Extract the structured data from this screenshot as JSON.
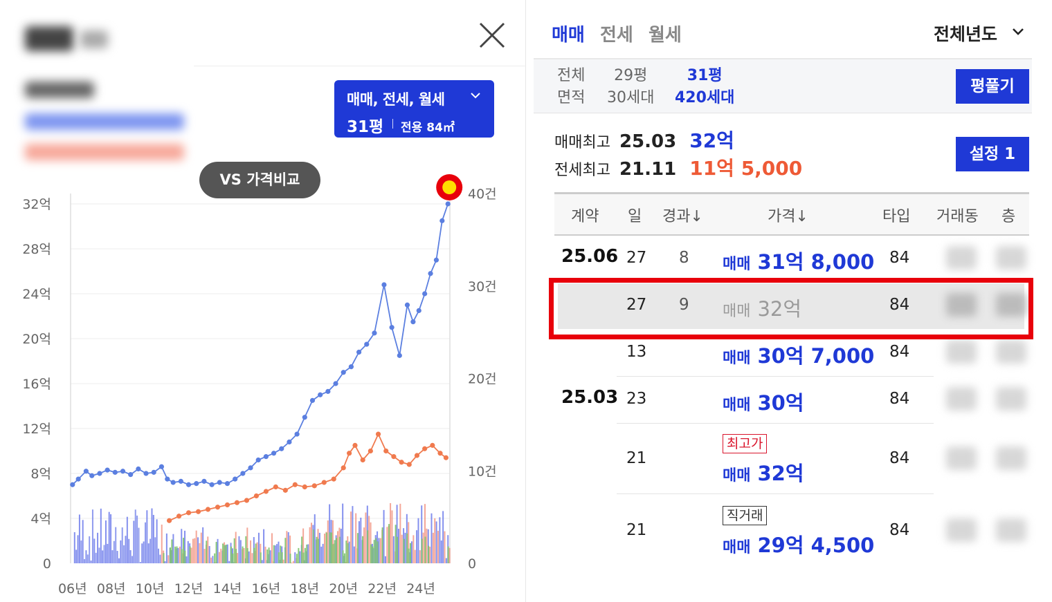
{
  "left_panel": {
    "filter": {
      "types_label": "매매, 전세, 월세",
      "pyeong": "31평",
      "area": "전용 84㎡"
    },
    "compare_button": "VS 가격비교",
    "icons": {
      "close": "close-icon",
      "dropdown": "chevron-down-icon"
    }
  },
  "chart_data": {
    "type": "line",
    "x_tick_labels": [
      "06년",
      "08년",
      "10년",
      "12년",
      "14년",
      "16년",
      "18년",
      "20년",
      "22년",
      "24년"
    ],
    "y_left_tick_labels": [
      "0",
      "4억",
      "8억",
      "12억",
      "16억",
      "20억",
      "24억",
      "28억",
      "32억"
    ],
    "y_right_tick_labels": [
      "0",
      "10건",
      "20건",
      "30건",
      "40건"
    ],
    "ylim_price_eok": [
      0,
      32
    ],
    "ylim_volume_cases": [
      0,
      40
    ],
    "series": [
      {
        "name": "매매",
        "color": "#5b7fe0",
        "x": [
          2006.0,
          2006.3,
          2006.7,
          2007.0,
          2007.4,
          2007.8,
          2008.2,
          2008.6,
          2009.0,
          2009.4,
          2009.8,
          2010.2,
          2010.6,
          2010.9,
          2011.2,
          2011.6,
          2012.0,
          2012.4,
          2012.8,
          2013.2,
          2013.6,
          2014.0,
          2014.4,
          2014.8,
          2015.2,
          2015.6,
          2016.0,
          2016.4,
          2016.8,
          2017.2,
          2017.6,
          2018.0,
          2018.4,
          2018.8,
          2019.2,
          2019.6,
          2020.0,
          2020.4,
          2020.8,
          2021.2,
          2021.6,
          2022.1,
          2022.5,
          2022.9,
          2023.3,
          2023.6,
          2023.9,
          2024.2,
          2024.5,
          2024.8,
          2025.1,
          2025.4
        ],
        "values": [
          7.0,
          7.5,
          8.2,
          7.8,
          8.0,
          8.3,
          8.1,
          8.2,
          7.9,
          8.4,
          8.0,
          8.1,
          8.6,
          7.5,
          7.2,
          7.3,
          7.0,
          7.1,
          7.3,
          7.0,
          7.2,
          7.1,
          7.5,
          8.0,
          8.5,
          9.2,
          9.5,
          9.8,
          10.2,
          10.8,
          11.5,
          13.0,
          14.5,
          15.0,
          15.3,
          16.0,
          17.0,
          17.5,
          18.8,
          19.5,
          20.5,
          24.8,
          21.0,
          18.5,
          23.0,
          21.5,
          22.5,
          24.0,
          25.8,
          27.0,
          30.5,
          32.0
        ]
      },
      {
        "name": "전세",
        "color": "#f07a4e",
        "x": [
          2011.0,
          2011.5,
          2012.0,
          2012.5,
          2013.0,
          2013.5,
          2014.0,
          2014.5,
          2015.0,
          2015.5,
          2016.0,
          2016.5,
          2017.0,
          2017.5,
          2018.0,
          2018.5,
          2019.0,
          2019.5,
          2020.0,
          2020.3,
          2020.6,
          2021.0,
          2021.4,
          2021.8,
          2022.2,
          2022.6,
          2023.0,
          2023.4,
          2023.8,
          2024.2,
          2024.6,
          2025.0,
          2025.3
        ],
        "values": [
          3.8,
          4.2,
          4.5,
          4.6,
          4.8,
          5.0,
          5.2,
          5.4,
          5.6,
          6.0,
          6.4,
          6.8,
          6.5,
          7.0,
          6.8,
          6.9,
          7.2,
          7.5,
          8.5,
          9.8,
          10.5,
          9.2,
          10.0,
          11.5,
          10.0,
          9.5,
          9.0,
          8.8,
          9.6,
          10.2,
          10.5,
          9.8,
          9.4
        ]
      }
    ]
  },
  "right_panel": {
    "tabs": [
      "매매",
      "전세",
      "월세"
    ],
    "year_select": "전체년도",
    "area_options": [
      {
        "line1": "전체",
        "line2": "면적"
      },
      {
        "line1": "29평",
        "line2": "30세대"
      },
      {
        "line1": "31평",
        "line2": "420세대"
      }
    ],
    "pyeong_button": "평풀기",
    "summary": {
      "sale_max_label": "매매최고",
      "sale_max_date": "25.03",
      "sale_max_price": "32억",
      "jeonse_max_label": "전세최고",
      "jeonse_max_date": "21.11",
      "jeonse_max_price": "11억 5,000"
    },
    "settings_button": "설정 1",
    "table": {
      "headers": [
        "계약",
        "일",
        "경과↓",
        "가격↓",
        "타입",
        "거래동",
        "층"
      ],
      "rows": [
        {
          "ym": "25.06",
          "day": "27",
          "elapsed": "8",
          "type_label": "매매",
          "price": "31억 8,000",
          "type": "84"
        },
        {
          "ym": "",
          "day": "27",
          "elapsed": "9",
          "type_label": "매매",
          "price": "32억",
          "type": "84"
        },
        {
          "ym": "",
          "day": "13",
          "elapsed": "",
          "type_label": "매매",
          "price": "30억 7,000",
          "type": "84"
        },
        {
          "ym": "25.03",
          "day": "23",
          "elapsed": "",
          "type_label": "매매",
          "price": "30억",
          "type": "84"
        },
        {
          "ym": "",
          "day": "21",
          "elapsed": "",
          "badge": "최고가",
          "type_label": "매매",
          "price": "32억",
          "type": "84"
        },
        {
          "ym": "",
          "day": "21",
          "elapsed": "",
          "badge": "직거래",
          "type_label": "매매",
          "price": "29억 4,500",
          "type": "84"
        }
      ]
    }
  }
}
